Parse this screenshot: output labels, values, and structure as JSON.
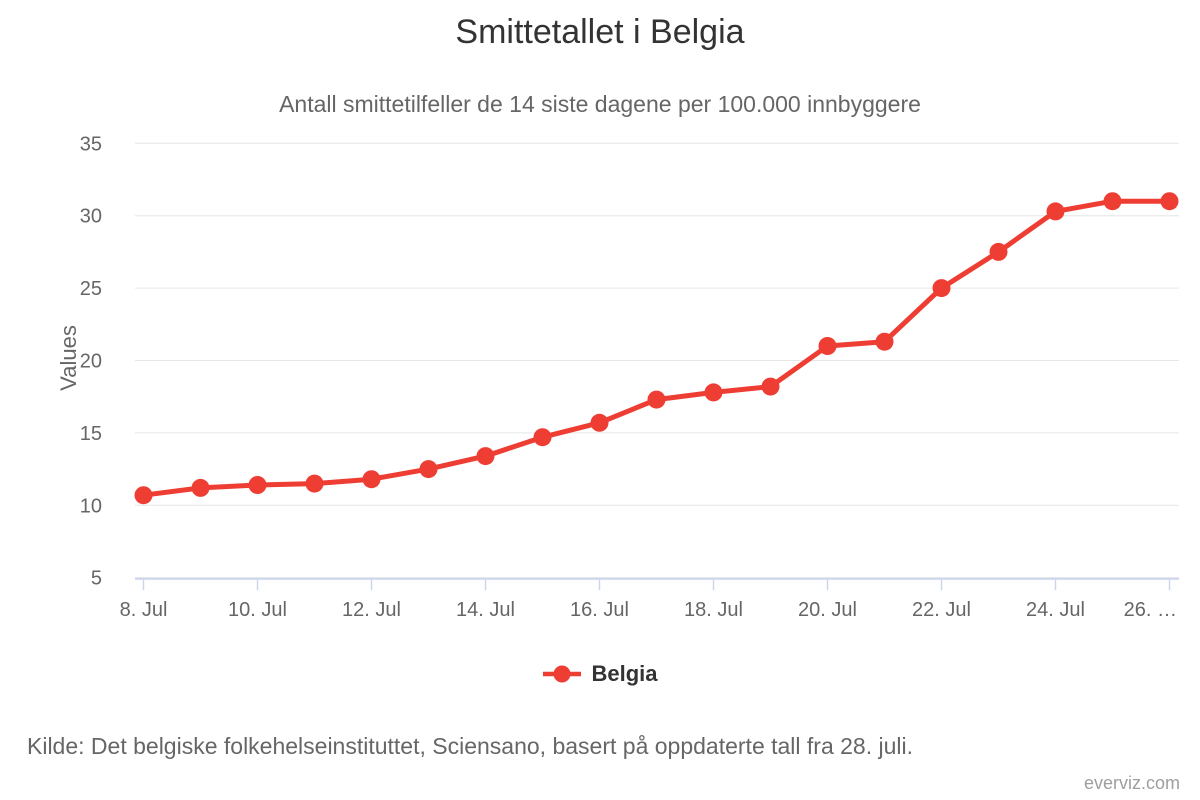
{
  "title": "Smittetallet i Belgia",
  "subtitle": "Antall smittetilfeller de 14 siste dagene per 100.000 innbyggere",
  "legend": {
    "series_label": "Belgia"
  },
  "footer": {
    "source": "Kilde: Det belgiske folkehelseinstituttet, Sciensano, basert på oppdaterte tall fra 28. juli."
  },
  "watermark": "everviz.com",
  "colors": {
    "series": "#ee3e34",
    "gridline": "#e6e6e6",
    "axis_line": "#ccd6eb",
    "axis_label": "#666666",
    "title": "#333333",
    "subtitle": "#666666",
    "legend_text": "#333333",
    "source_text": "#666666",
    "watermark_text": "#9e9e9e",
    "background": "#ffffff"
  },
  "chart_data": {
    "type": "line",
    "title": "Smittetallet i Belgia",
    "subtitle": "Antall smittetilfeller de 14 siste dagene per 100.000 innbyggere",
    "xlabel": "",
    "ylabel": "Values",
    "ylim": [
      5,
      35
    ],
    "y_ticks": [
      5,
      10,
      15,
      20,
      25,
      30,
      35
    ],
    "x_tick_labels": [
      "8. Jul",
      "10. Jul",
      "12. Jul",
      "14. Jul",
      "16. Jul",
      "18. Jul",
      "20. Jul",
      "22. Jul",
      "24. Jul",
      "26. …"
    ],
    "grid": true,
    "legend_position": "bottom",
    "categories": [
      "8. Jul",
      "9. Jul",
      "10. Jul",
      "11. Jul",
      "12. Jul",
      "13. Jul",
      "14. Jul",
      "15. Jul",
      "16. Jul",
      "17. Jul",
      "18. Jul",
      "19. Jul",
      "20. Jul",
      "21. Jul",
      "22. Jul",
      "23. Jul",
      "24. Jul",
      "25. Jul",
      "26. Jul"
    ],
    "series": [
      {
        "name": "Belgia",
        "color": "#ee3e34",
        "marker": "circle",
        "values": [
          10.7,
          11.2,
          11.4,
          11.5,
          11.8,
          12.5,
          13.4,
          14.7,
          15.7,
          17.3,
          17.8,
          18.2,
          21.0,
          21.3,
          25.0,
          27.5,
          30.3,
          31.0,
          31.0
        ]
      }
    ]
  }
}
